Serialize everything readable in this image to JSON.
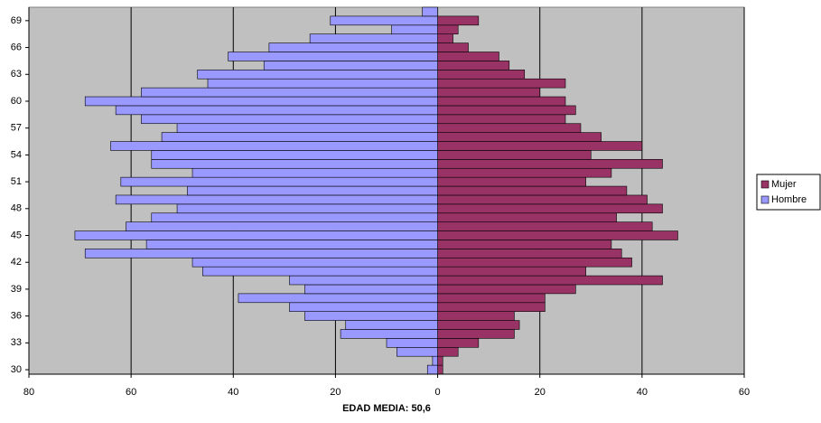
{
  "chart_data": {
    "type": "pyramid",
    "xlabel": "EDAD MEDIA: 50,6",
    "categories": [
      30,
      null,
      null,
      33,
      null,
      null,
      36,
      null,
      null,
      39,
      null,
      null,
      42,
      null,
      null,
      45,
      null,
      null,
      48,
      null,
      null,
      51,
      null,
      null,
      54,
      null,
      null,
      57,
      null,
      null,
      60,
      null,
      null,
      63,
      null,
      null,
      66,
      null,
      null,
      69,
      null
    ],
    "series": [
      {
        "name": "Mujer",
        "color": "#993366",
        "values": [
          1,
          1,
          4,
          8,
          15,
          16,
          15,
          21,
          21,
          27,
          44,
          29,
          38,
          36,
          34,
          47,
          42,
          35,
          44,
          41,
          37,
          29,
          34,
          44,
          30,
          40,
          32,
          28,
          25,
          27,
          25,
          20,
          25,
          17,
          14,
          12,
          6,
          3,
          4,
          8,
          0
        ]
      },
      {
        "name": "Hombre",
        "color": "#9999ff",
        "values": [
          -2,
          -1,
          -8,
          -10,
          -19,
          -18,
          -26,
          -29,
          -39,
          -26,
          -29,
          -46,
          -48,
          -69,
          -57,
          -71,
          -61,
          -56,
          -51,
          -63,
          -49,
          -62,
          -48,
          -56,
          -56,
          -64,
          -54,
          -51,
          -58,
          -63,
          -69,
          -58,
          -45,
          -47,
          -34,
          -41,
          -33,
          -25,
          -9,
          -21,
          -3
        ]
      }
    ],
    "xlim": [
      -80,
      60
    ],
    "xticks": [
      {
        "value": -80,
        "label": "80"
      },
      {
        "value": -60,
        "label": "60"
      },
      {
        "value": -40,
        "label": "40"
      },
      {
        "value": -20,
        "label": "20"
      },
      0,
      20,
      40,
      60
    ],
    "grid": true,
    "legend": "right",
    "background": "#c0c0c0"
  }
}
